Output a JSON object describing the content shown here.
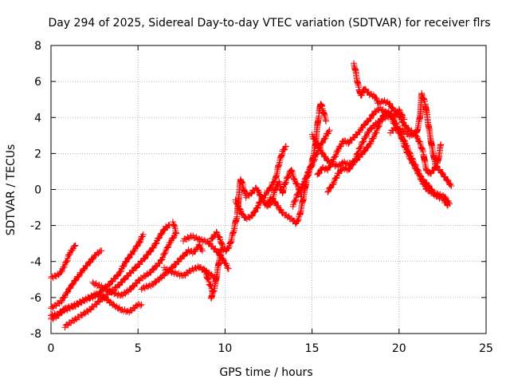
{
  "chart_data": {
    "type": "scatter",
    "title": "Day 294 of 2025, Sidereal Day-to-day VTEC variation (SDTVAR) for receiver flrs",
    "xlabel": "GPS time / hours",
    "ylabel": "SDTVAR / TECUs",
    "xlim": [
      0,
      25
    ],
    "ylim": [
      -8,
      8
    ],
    "xticks": [
      0,
      5,
      10,
      15,
      20,
      25
    ],
    "yticks": [
      -8,
      -6,
      -4,
      -2,
      0,
      2,
      4,
      6,
      8
    ],
    "grid": true,
    "marker": "+",
    "series": [
      {
        "name": "satellite tracks",
        "color": "#ff0000",
        "tracks": [
          [
            [
              0.0,
              -4.9
            ],
            [
              0.5,
              -4.7
            ],
            [
              0.8,
              -4.2
            ],
            [
              1.1,
              -3.5
            ],
            [
              1.4,
              -3.1
            ]
          ],
          [
            [
              0.0,
              -6.6
            ],
            [
              0.6,
              -6.2
            ],
            [
              1.2,
              -5.3
            ],
            [
              1.9,
              -4.4
            ],
            [
              2.6,
              -3.6
            ],
            [
              2.9,
              -3.4
            ]
          ],
          [
            [
              0.0,
              -7.0
            ],
            [
              0.4,
              -6.9
            ],
            [
              0.8,
              -6.7
            ],
            [
              1.4,
              -6.4
            ],
            [
              2.0,
              -6.1
            ],
            [
              2.6,
              -5.8
            ],
            [
              3.2,
              -6.1
            ],
            [
              3.7,
              -6.5
            ],
            [
              4.1,
              -6.7
            ],
            [
              4.5,
              -6.8
            ],
            [
              5.0,
              -6.4
            ],
            [
              5.2,
              -6.4
            ]
          ],
          [
            [
              0.0,
              -7.2
            ],
            [
              0.4,
              -7.0
            ],
            [
              0.8,
              -6.6
            ],
            [
              1.3,
              -6.5
            ],
            [
              2.0,
              -6.1
            ],
            [
              2.6,
              -5.9
            ],
            [
              3.3,
              -5.3
            ],
            [
              3.9,
              -4.7
            ],
            [
              4.3,
              -4.0
            ],
            [
              4.7,
              -3.5
            ],
            [
              5.1,
              -2.9
            ],
            [
              5.3,
              -2.5
            ]
          ],
          [
            [
              0.8,
              -7.6
            ],
            [
              1.4,
              -7.2
            ],
            [
              2.2,
              -6.7
            ],
            [
              3.0,
              -6.0
            ],
            [
              3.8,
              -5.4
            ],
            [
              4.6,
              -4.6
            ],
            [
              5.3,
              -3.9
            ],
            [
              5.9,
              -3.2
            ],
            [
              6.3,
              -2.5
            ],
            [
              6.6,
              -2.1
            ],
            [
              6.8,
              -2.0
            ]
          ],
          [
            [
              2.4,
              -5.2
            ],
            [
              2.9,
              -5.4
            ],
            [
              3.5,
              -5.7
            ],
            [
              4.0,
              -5.9
            ],
            [
              4.5,
              -5.6
            ],
            [
              5.1,
              -5.0
            ],
            [
              5.7,
              -4.6
            ],
            [
              6.3,
              -4.0
            ],
            [
              6.8,
              -3.0
            ],
            [
              7.2,
              -2.4
            ],
            [
              7.0,
              -1.8
            ]
          ],
          [
            [
              5.2,
              -5.5
            ],
            [
              5.8,
              -5.3
            ],
            [
              6.3,
              -4.9
            ],
            [
              6.9,
              -4.4
            ],
            [
              7.5,
              -3.8
            ],
            [
              7.9,
              -3.4
            ],
            [
              8.2,
              -3.5
            ],
            [
              8.5,
              -3.1
            ],
            [
              8.7,
              -3.4
            ]
          ],
          [
            [
              6.5,
              -4.4
            ],
            [
              7.0,
              -4.6
            ],
            [
              7.6,
              -4.8
            ],
            [
              8.0,
              -4.5
            ],
            [
              8.5,
              -4.3
            ],
            [
              9.0,
              -4.6
            ],
            [
              9.4,
              -4.9
            ]
          ],
          [
            [
              7.6,
              -2.8
            ],
            [
              8.1,
              -2.6
            ],
            [
              8.6,
              -2.8
            ],
            [
              9.0,
              -2.9
            ],
            [
              9.3,
              -3.2
            ],
            [
              9.6,
              -3.5
            ],
            [
              9.9,
              -3.9
            ],
            [
              10.2,
              -4.4
            ]
          ],
          [
            [
              8.8,
              -4.4
            ],
            [
              9.1,
              -5.2
            ],
            [
              9.3,
              -5.7
            ],
            [
              9.2,
              -6.0
            ],
            [
              9.4,
              -5.5
            ],
            [
              9.6,
              -4.3
            ],
            [
              9.8,
              -3.3
            ]
          ],
          [
            [
              9.2,
              -2.8
            ],
            [
              9.5,
              -2.4
            ],
            [
              9.7,
              -2.7
            ],
            [
              9.9,
              -3.3
            ],
            [
              10.1,
              -3.4
            ],
            [
              10.3,
              -3.0
            ],
            [
              10.5,
              -2.3
            ],
            [
              10.7,
              -1.4
            ],
            [
              10.8,
              -0.3
            ],
            [
              10.9,
              0.6
            ],
            [
              11.0,
              0.3
            ],
            [
              11.2,
              -0.4
            ],
            [
              11.5,
              -0.2
            ],
            [
              11.8,
              0.1
            ],
            [
              12.0,
              -0.3
            ],
            [
              12.3,
              -0.8
            ],
            [
              12.5,
              -0.9
            ],
            [
              12.7,
              -0.7
            ],
            [
              12.9,
              0.1
            ],
            [
              13.1,
              0.4
            ],
            [
              13.3,
              -0.2
            ],
            [
              13.4,
              0.2
            ],
            [
              13.6,
              0.7
            ],
            [
              13.8,
              1.1
            ],
            [
              14.0,
              0.5
            ],
            [
              14.2,
              0.2
            ],
            [
              14.4,
              -0.4
            ]
          ],
          [
            [
              10.6,
              -0.6
            ],
            [
              10.8,
              -1.0
            ],
            [
              11.0,
              -1.4
            ],
            [
              11.2,
              -1.6
            ],
            [
              11.5,
              -1.5
            ],
            [
              11.8,
              -1.1
            ],
            [
              12.0,
              -0.7
            ],
            [
              12.3,
              -0.3
            ],
            [
              12.6,
              0.1
            ],
            [
              12.9,
              0.6
            ],
            [
              13.1,
              1.4
            ],
            [
              13.3,
              2.1
            ],
            [
              13.5,
              2.4
            ]
          ],
          [
            [
              12.4,
              -0.9
            ],
            [
              12.6,
              -0.5
            ],
            [
              12.8,
              -0.6
            ],
            [
              13.0,
              -0.9
            ],
            [
              13.3,
              -1.3
            ],
            [
              13.6,
              -1.5
            ],
            [
              13.9,
              -1.7
            ],
            [
              14.1,
              -1.9
            ],
            [
              14.3,
              -1.4
            ],
            [
              14.5,
              -0.5
            ],
            [
              14.7,
              0.6
            ],
            [
              14.9,
              1.2
            ],
            [
              15.0,
              1.5
            ],
            [
              15.2,
              2.5
            ],
            [
              15.3,
              3.5
            ],
            [
              15.4,
              4.2
            ],
            [
              15.5,
              4.8
            ],
            [
              15.6,
              4.5
            ],
            [
              15.8,
              3.8
            ]
          ],
          [
            [
              13.9,
              -0.9
            ],
            [
              14.2,
              -0.2
            ],
            [
              14.5,
              0.3
            ],
            [
              14.8,
              1.0
            ],
            [
              15.1,
              1.6
            ],
            [
              15.4,
              2.3
            ],
            [
              15.7,
              2.8
            ],
            [
              16.0,
              3.3
            ]
          ],
          [
            [
              15.0,
              3.0
            ],
            [
              15.3,
              2.5
            ],
            [
              15.6,
              2.0
            ],
            [
              15.9,
              1.6
            ],
            [
              16.2,
              1.4
            ],
            [
              16.5,
              1.3
            ],
            [
              16.8,
              1.5
            ],
            [
              17.1,
              1.4
            ],
            [
              17.5,
              1.6
            ],
            [
              17.9,
              2.0
            ],
            [
              18.3,
              2.5
            ],
            [
              18.7,
              3.2
            ],
            [
              19.0,
              4.0
            ],
            [
              19.3,
              4.3
            ],
            [
              19.7,
              4.1
            ],
            [
              20.0,
              4.4
            ],
            [
              20.3,
              3.9
            ]
          ],
          [
            [
              15.3,
              0.8
            ],
            [
              15.6,
              1.2
            ],
            [
              15.9,
              1.1
            ],
            [
              16.2,
              1.6
            ],
            [
              16.5,
              2.2
            ],
            [
              16.8,
              2.7
            ],
            [
              17.1,
              2.6
            ],
            [
              17.4,
              2.9
            ],
            [
              17.7,
              3.2
            ],
            [
              18.0,
              3.6
            ],
            [
              18.3,
              3.9
            ],
            [
              18.6,
              4.3
            ],
            [
              18.9,
              4.5
            ],
            [
              19.2,
              4.3
            ],
            [
              19.5,
              4.2
            ],
            [
              19.8,
              3.7
            ],
            [
              20.1,
              3.1
            ],
            [
              20.4,
              2.5
            ],
            [
              20.7,
              1.8
            ],
            [
              21.0,
              1.2
            ],
            [
              21.3,
              0.6
            ],
            [
              21.7,
              0.2
            ],
            [
              22.0,
              -0.2
            ],
            [
              22.3,
              -0.3
            ],
            [
              22.6,
              -0.4
            ],
            [
              22.9,
              -0.8
            ]
          ],
          [
            [
              15.9,
              -0.1
            ],
            [
              16.2,
              0.3
            ],
            [
              16.5,
              0.9
            ],
            [
              16.8,
              1.2
            ],
            [
              17.1,
              1.1
            ],
            [
              17.4,
              1.5
            ],
            [
              17.7,
              2.2
            ],
            [
              18.0,
              2.8
            ],
            [
              18.3,
              3.3
            ],
            [
              18.6,
              3.6
            ],
            [
              18.9,
              3.8
            ],
            [
              19.2,
              4.0
            ],
            [
              19.5,
              4.1
            ],
            [
              19.8,
              3.5
            ],
            [
              20.1,
              3.0
            ],
            [
              20.4,
              2.2
            ],
            [
              20.7,
              1.6
            ],
            [
              21.0,
              1.1
            ],
            [
              21.3,
              0.5
            ],
            [
              21.6,
              0.0
            ],
            [
              21.9,
              -0.2
            ],
            [
              22.2,
              -0.4
            ],
            [
              22.5,
              -0.5
            ],
            [
              22.8,
              -0.9
            ]
          ],
          [
            [
              17.4,
              7.0
            ],
            [
              17.5,
              6.6
            ],
            [
              17.6,
              6.0
            ],
            [
              17.7,
              5.6
            ],
            [
              17.8,
              5.2
            ],
            [
              18.0,
              5.6
            ],
            [
              18.3,
              5.3
            ],
            [
              18.6,
              5.2
            ],
            [
              18.8,
              4.8
            ],
            [
              19.1,
              4.9
            ],
            [
              19.4,
              4.8
            ],
            [
              19.7,
              4.4
            ],
            [
              20.0,
              4.1
            ],
            [
              20.3,
              3.6
            ],
            [
              20.6,
              3.3
            ],
            [
              20.9,
              3.1
            ],
            [
              21.2,
              2.6
            ],
            [
              21.4,
              2.0
            ],
            [
              21.5,
              1.4
            ],
            [
              21.6,
              1.0
            ],
            [
              21.8,
              0.9
            ],
            [
              22.0,
              1.1
            ],
            [
              22.2,
              1.4
            ],
            [
              22.4,
              2.5
            ]
          ],
          [
            [
              19.5,
              3.2
            ],
            [
              19.8,
              3.4
            ],
            [
              20.2,
              3.3
            ],
            [
              20.6,
              3.0
            ],
            [
              21.0,
              3.1
            ],
            [
              21.2,
              4.0
            ],
            [
              21.3,
              5.3
            ],
            [
              21.5,
              4.8
            ],
            [
              21.7,
              3.5
            ],
            [
              21.9,
              2.3
            ],
            [
              22.1,
              1.3
            ],
            [
              22.4,
              1.0
            ],
            [
              22.7,
              0.6
            ],
            [
              23.0,
              0.2
            ]
          ]
        ]
      }
    ]
  }
}
